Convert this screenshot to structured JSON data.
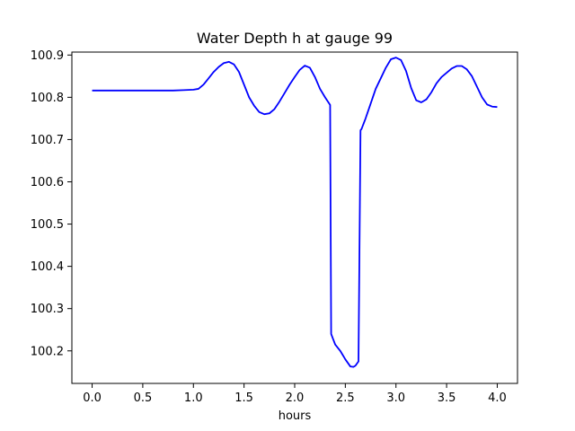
{
  "chart_data": {
    "type": "line",
    "title": "Water Depth h at gauge 99",
    "xlabel": "hours",
    "ylabel": "",
    "xlim": [
      -0.2,
      4.2
    ],
    "ylim": [
      100.123,
      100.907
    ],
    "xticks": [
      0.0,
      0.5,
      1.0,
      1.5,
      2.0,
      2.5,
      3.0,
      3.5,
      4.0
    ],
    "xtick_labels": [
      "0.0",
      "0.5",
      "1.0",
      "1.5",
      "2.0",
      "2.5",
      "3.0",
      "3.5",
      "4.0"
    ],
    "yticks": [
      100.2,
      100.3,
      100.4,
      100.5,
      100.6,
      100.7,
      100.8,
      100.9
    ],
    "ytick_labels": [
      "100.2",
      "100.3",
      "100.4",
      "100.5",
      "100.6",
      "100.7",
      "100.8",
      "100.9"
    ],
    "grid": false,
    "series": [
      {
        "name": "",
        "color": "#0000ff",
        "x": [
          0.0,
          0.2,
          0.4,
          0.6,
          0.8,
          0.9,
          1.0,
          1.05,
          1.1,
          1.15,
          1.2,
          1.25,
          1.3,
          1.35,
          1.4,
          1.45,
          1.5,
          1.55,
          1.6,
          1.65,
          1.7,
          1.75,
          1.8,
          1.85,
          1.9,
          1.95,
          2.0,
          2.05,
          2.1,
          2.15,
          2.2,
          2.25,
          2.3,
          2.35,
          2.36,
          2.4,
          2.45,
          2.5,
          2.55,
          2.58,
          2.6,
          2.63,
          2.65,
          2.66,
          2.7,
          2.75,
          2.8,
          2.85,
          2.9,
          2.95,
          3.0,
          3.05,
          3.1,
          3.15,
          3.2,
          3.25,
          3.3,
          3.35,
          3.4,
          3.45,
          3.5,
          3.55,
          3.6,
          3.65,
          3.7,
          3.75,
          3.8,
          3.85,
          3.9,
          3.95,
          4.0
        ],
        "y": [
          100.816,
          100.816,
          100.816,
          100.816,
          100.816,
          100.817,
          100.818,
          100.82,
          100.83,
          100.845,
          100.86,
          100.872,
          100.881,
          100.884,
          100.878,
          100.86,
          100.83,
          100.8,
          100.78,
          100.765,
          100.76,
          100.762,
          100.772,
          100.79,
          100.81,
          100.83,
          100.848,
          100.865,
          100.875,
          100.87,
          100.848,
          100.82,
          100.8,
          100.782,
          100.24,
          100.215,
          100.2,
          100.18,
          100.163,
          100.162,
          100.165,
          100.175,
          100.722,
          100.725,
          100.75,
          100.785,
          100.82,
          100.845,
          100.87,
          100.89,
          100.894,
          100.888,
          100.862,
          100.822,
          100.793,
          100.788,
          100.795,
          100.812,
          100.833,
          100.848,
          100.858,
          100.868,
          100.874,
          100.874,
          100.866,
          100.85,
          100.825,
          100.8,
          100.783,
          100.778,
          100.777
        ]
      }
    ]
  }
}
